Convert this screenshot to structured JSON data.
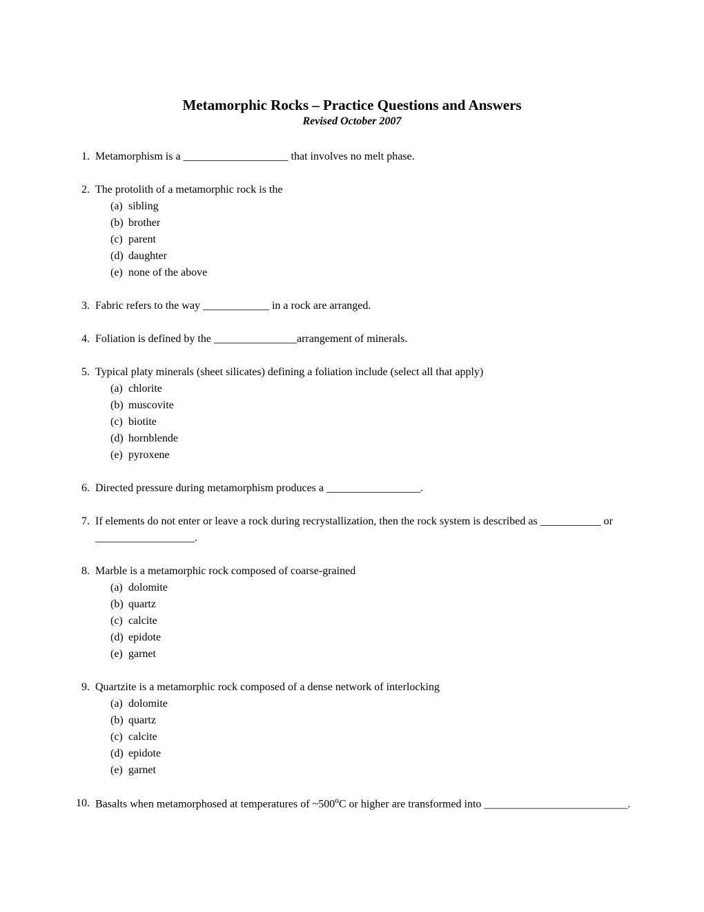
{
  "title": "Metamorphic Rocks – Practice Questions and Answers",
  "subtitle": "Revised October 2007",
  "questions": [
    {
      "num": "1.",
      "text": "Metamorphism is a ___________________ that involves no melt phase.",
      "options": []
    },
    {
      "num": "2.",
      "text": "The protolith of a metamorphic rock is the",
      "options": [
        "sibling",
        "brother",
        "parent",
        "daughter",
        "none of the above"
      ]
    },
    {
      "num": "3.",
      "text": "Fabric refers to the way ____________ in a rock are arranged.",
      "options": []
    },
    {
      "num": "4.",
      "text": "Foliation is defined by the _______________arrangement of minerals.",
      "options": []
    },
    {
      "num": "5.",
      "text": "Typical platy minerals (sheet silicates) defining a foliation include (select all that apply)",
      "options": [
        "chlorite",
        "muscovite",
        "biotite",
        "hornblende",
        "pyroxene"
      ]
    },
    {
      "num": "6.",
      "text": "Directed pressure during metamorphism produces a _________________.",
      "options": []
    },
    {
      "num": "7.",
      "text": "If elements do not enter or leave a rock during recrystallization, then the rock system is described as ___________ or __________________.",
      "options": []
    },
    {
      "num": "8.",
      "text": "Marble is a metamorphic rock composed of coarse-grained",
      "options": [
        "dolomite",
        "quartz",
        "calcite",
        "epidote",
        "garnet"
      ]
    },
    {
      "num": "9.",
      "text": "Quartzite is a metamorphic rock composed of a dense network of interlocking",
      "options": [
        "dolomite",
        "quartz",
        "calcite",
        "epidote",
        "garnet"
      ]
    },
    {
      "num": "10.",
      "text_html": "Basalts when metamorphosed at temperatures of ~500°C or higher are transformed into __________________________.",
      "text_parts": {
        "before": "Basalts when metamorphosed at temperatures of ~500",
        "sup": "o",
        "after": "C or higher are transformed into __________________________."
      },
      "options": []
    }
  ],
  "option_letters": [
    "(a)",
    "(b)",
    "(c)",
    "(d)",
    "(e)"
  ]
}
